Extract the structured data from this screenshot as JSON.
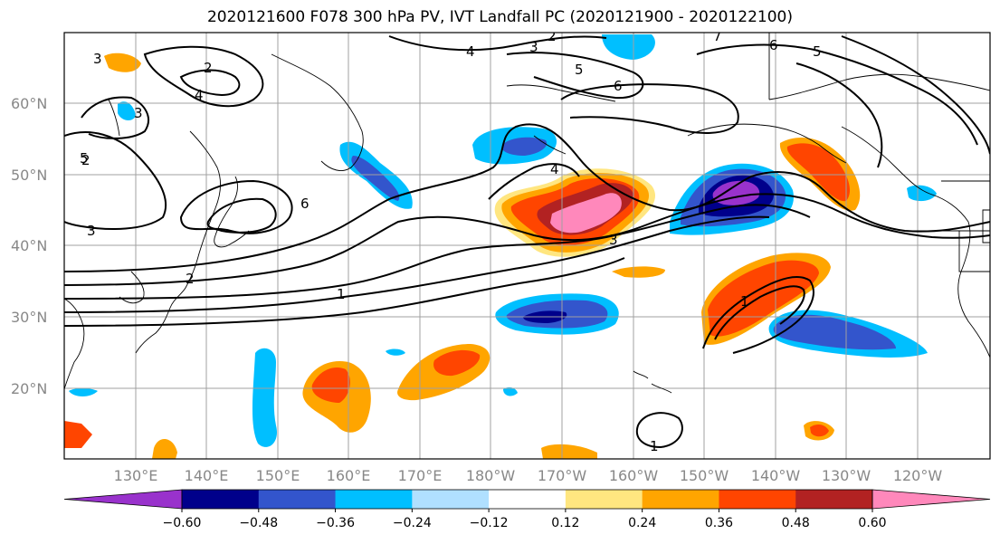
{
  "title": "2020121600 F078 300 hPa PV, IVT Landfall PC (2020121900 - 2020122100)",
  "lat_labels": [
    "60°N",
    "50°N",
    "40°N",
    "30°N",
    "20°N"
  ],
  "lon_labels": [
    "130°E",
    "140°E",
    "150°E",
    "160°E",
    "170°E",
    "180°W",
    "170°W",
    "160°W",
    "150°W",
    "140°W",
    "130°W",
    "120°W"
  ],
  "colorbar": {
    "ticks": [
      "−0.60",
      "−0.48",
      "−0.36",
      "−0.24",
      "−0.12",
      "0.12",
      "0.24",
      "0.36",
      "0.48",
      "0.60"
    ],
    "colors": [
      "#9932CC",
      "#00008B",
      "#3355CC",
      "#00BFFF",
      "#B0E0FF",
      "#FFFFFF",
      "#FFE680",
      "#FFA500",
      "#FF4500",
      "#B22222",
      "#FF88BB"
    ]
  },
  "contour_labels": [
    "3",
    "2",
    "4",
    "3",
    "2",
    "5",
    "6",
    "7",
    "6",
    "5",
    "2",
    "3",
    "4",
    "6",
    "3",
    "2",
    "1",
    "1",
    "4",
    "3",
    "1",
    "5"
  ]
}
